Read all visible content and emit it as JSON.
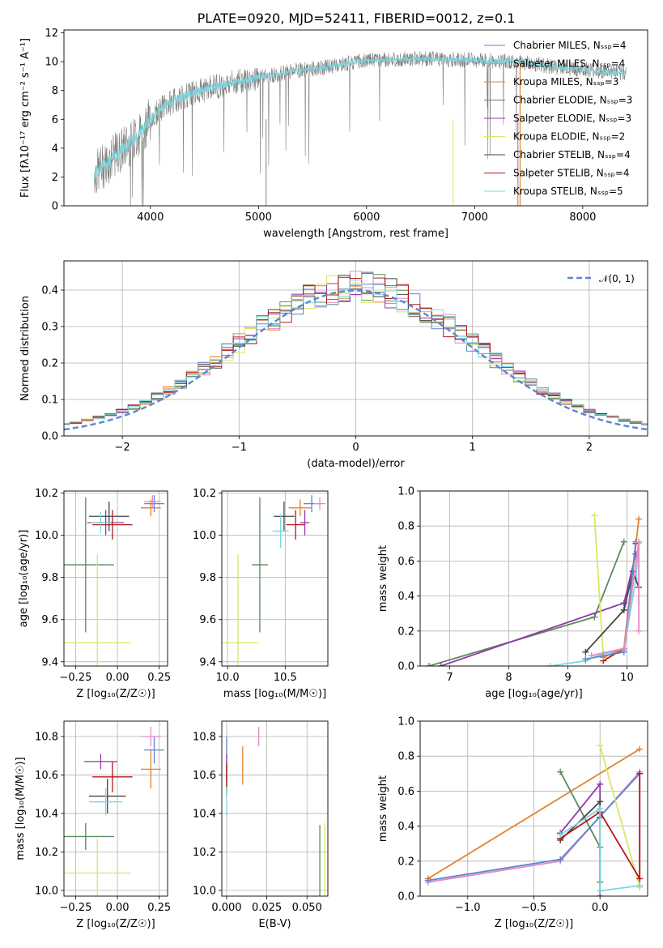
{
  "title": "PLATE=0920, MJD=52411, FIBERID=0012, z=0.1",
  "legend_models": [
    {
      "label": "Chabrier MILES, Nₛₛₚ=4",
      "color": "#5b86d4"
    },
    {
      "label": "Salpeter MILES, Nₛₛₚ=4",
      "color": "#e58ac3"
    },
    {
      "label": "Kroupa MILES, Nₛₛₚ=3",
      "color": "#e0842f"
    },
    {
      "label": "Chabrier ELODIE, Nₛₛₚ=3",
      "color": "#5a8a5f"
    },
    {
      "label": "Salpeter ELODIE, Nₛₛₚ=3",
      "color": "#8e3aa8"
    },
    {
      "label": "Kroupa ELODIE, Nₛₛₚ=2",
      "color": "#d8e862"
    },
    {
      "label": "Chabrier STELIB, Nₛₛₚ=4",
      "color": "#444444"
    },
    {
      "label": "Salpeter STELIB, Nₛₛₚ=4",
      "color": "#b01a1a"
    },
    {
      "label": "Kroupa STELIB, Nₛₛₚ=5",
      "color": "#79d6e0"
    }
  ],
  "chart_data": [
    {
      "id": "spectrum",
      "type": "line",
      "xlabel": "wavelength [Angstrom, rest frame]",
      "ylabel": "Flux [fλ10⁻¹⁷ erg cm⁻² s⁻¹ A⁻¹]",
      "xlim": [
        3200,
        8600
      ],
      "ylim": [
        0,
        12.2
      ],
      "xticks": [
        4000,
        5000,
        6000,
        7000,
        8000
      ],
      "yticks": [
        0,
        2,
        4,
        6,
        8,
        10,
        12
      ],
      "observed_color": "#808080",
      "model_color": "#79d6e0",
      "continuum": [
        [
          3480,
          2.2
        ],
        [
          3600,
          3.0
        ],
        [
          3750,
          4.0
        ],
        [
          3900,
          5.0
        ],
        [
          4000,
          6.0
        ],
        [
          4100,
          6.8
        ],
        [
          4300,
          7.6
        ],
        [
          4600,
          8.3
        ],
        [
          5000,
          8.9
        ],
        [
          5300,
          9.3
        ],
        [
          5600,
          9.6
        ],
        [
          6000,
          10.1
        ],
        [
          6500,
          10.2
        ],
        [
          7000,
          10.1
        ],
        [
          7400,
          10.0
        ],
        [
          7800,
          9.6
        ],
        [
          8200,
          9.3
        ],
        [
          8400,
          9.2
        ]
      ]
    },
    {
      "id": "residuals",
      "type": "histogram",
      "xlabel": "(data-model)/error",
      "ylabel": "Normed distribution",
      "xlim": [
        -2.5,
        2.5
      ],
      "ylim": [
        0,
        0.48
      ],
      "xticks": [
        -2,
        -1,
        0,
        1,
        2
      ],
      "yticks": [
        0.0,
        0.1,
        0.2,
        0.3,
        0.4
      ],
      "legend": "𝒩(0, 1)",
      "series_color": "#5b86d4"
    },
    {
      "id": "age_vs_Z",
      "type": "errorbar",
      "xlabel": "Z [log₁₀(Z/Z☉)]",
      "ylabel": "age  [log₁₀(age/yr)]",
      "xlim": [
        -0.32,
        0.3
      ],
      "ylim": [
        9.38,
        10.21
      ],
      "xticks": [
        -0.25,
        0.0,
        0.25
      ],
      "yticks": [
        9.4,
        9.6,
        9.8,
        10.0,
        10.2
      ],
      "points": [
        {
          "x": 0.22,
          "y": 10.15,
          "xerr": 0.06,
          "yerr": 0.04,
          "color": "#5b86d4"
        },
        {
          "x": 0.21,
          "y": 10.16,
          "xerr": 0.05,
          "yerr": 0.03,
          "color": "#e58ac3"
        },
        {
          "x": 0.2,
          "y": 10.13,
          "xerr": 0.06,
          "yerr": 0.04,
          "color": "#e0842f"
        },
        {
          "x": -0.19,
          "y": 9.86,
          "xerr": 0.17,
          "yerr": 0.32,
          "color": "#5a8a5f"
        },
        {
          "x": -0.07,
          "y": 10.06,
          "xerr": 0.11,
          "yerr": 0.06,
          "color": "#8e3aa8"
        },
        {
          "x": -0.12,
          "y": 9.49,
          "xerr": 0.2,
          "yerr": 0.42,
          "color": "#d8e862"
        },
        {
          "x": -0.05,
          "y": 10.09,
          "xerr": 0.12,
          "yerr": 0.07,
          "color": "#444444"
        },
        {
          "x": -0.03,
          "y": 10.05,
          "xerr": 0.12,
          "yerr": 0.07,
          "color": "#b01a1a"
        },
        {
          "x": -0.1,
          "y": 10.06,
          "xerr": 0.06,
          "yerr": 0.05,
          "color": "#79d6e0"
        }
      ]
    },
    {
      "id": "age_vs_mass",
      "type": "errorbar",
      "xlabel": "mass [log₁₀(M/M☉)]",
      "ylabel": "",
      "xlim": [
        9.95,
        10.87
      ],
      "ylim": [
        9.38,
        10.21
      ],
      "xticks": [
        10.0,
        10.5
      ],
      "yticks": [
        9.4,
        9.6,
        9.8,
        10.0,
        10.2
      ],
      "points": [
        {
          "x": 10.73,
          "y": 10.15,
          "xerr": 0.07,
          "yerr": 0.04,
          "color": "#5b86d4"
        },
        {
          "x": 10.8,
          "y": 10.15,
          "xerr": 0.05,
          "yerr": 0.03,
          "color": "#e58ac3"
        },
        {
          "x": 10.63,
          "y": 10.13,
          "xerr": 0.1,
          "yerr": 0.04,
          "color": "#e0842f"
        },
        {
          "x": 10.28,
          "y": 9.86,
          "xerr": 0.07,
          "yerr": 0.32,
          "color": "#5a8a5f"
        },
        {
          "x": 10.67,
          "y": 10.06,
          "xerr": 0.04,
          "yerr": 0.06,
          "color": "#8e3aa8"
        },
        {
          "x": 10.09,
          "y": 9.49,
          "xerr": 0.18,
          "yerr": 0.42,
          "color": "#d8e862"
        },
        {
          "x": 10.49,
          "y": 10.09,
          "xerr": 0.09,
          "yerr": 0.07,
          "color": "#444444"
        },
        {
          "x": 10.59,
          "y": 10.05,
          "xerr": 0.08,
          "yerr": 0.07,
          "color": "#b01a1a"
        },
        {
          "x": 10.46,
          "y": 10.02,
          "xerr": 0.07,
          "yerr": 0.08,
          "color": "#79d6e0"
        }
      ]
    },
    {
      "id": "weight_vs_age",
      "type": "line",
      "xlabel": "age  [log₁₀(age/yr)]",
      "ylabel": "mass weight",
      "xlim": [
        6.5,
        10.35
      ],
      "ylim": [
        0,
        1.0
      ],
      "xticks": [
        7,
        8,
        9,
        10
      ],
      "yticks": [
        0.0,
        0.2,
        0.4,
        0.6,
        0.8,
        1.0
      ],
      "series": [
        {
          "color": "#5a8a5f",
          "x": [
            6.65,
            9.45,
            9.95
          ],
          "y": [
            0.0,
            0.28,
            0.71
          ]
        },
        {
          "color": "#8e3aa8",
          "x": [
            6.85,
            9.95,
            10.15
          ],
          "y": [
            0.0,
            0.36,
            0.64
          ]
        },
        {
          "color": "#d8e862",
          "x": [
            9.45,
            9.6
          ],
          "y": [
            0.86,
            0.05
          ]
        },
        {
          "color": "#79d6e0",
          "x": [
            8.7,
            9.3,
            9.6,
            9.95,
            10.15,
            10.2
          ],
          "y": [
            0.0,
            0.03,
            0.07,
            0.09,
            0.5,
            0.7
          ]
        },
        {
          "color": "#444444",
          "x": [
            9.3,
            9.95,
            10.1,
            10.2
          ],
          "y": [
            0.08,
            0.32,
            0.54,
            0.45
          ]
        },
        {
          "color": "#b01a1a",
          "x": [
            9.6,
            9.95,
            10.15
          ],
          "y": [
            0.03,
            0.1,
            0.7
          ]
        },
        {
          "color": "#e0842f",
          "x": [
            9.6,
            9.95,
            10.2
          ],
          "y": [
            0.05,
            0.1,
            0.84
          ]
        },
        {
          "color": "#5b86d4",
          "x": [
            9.3,
            9.95,
            10.15
          ],
          "y": [
            0.04,
            0.08,
            0.71
          ]
        },
        {
          "color": "#e58ac3",
          "x": [
            9.4,
            9.95,
            10.2,
            10.2
          ],
          "y": [
            0.06,
            0.1,
            0.71,
            0.2
          ]
        }
      ]
    },
    {
      "id": "mass_vs_Z",
      "type": "errorbar",
      "xlabel": "Z [log₁₀(Z/Z☉)]",
      "ylabel": "mass [log₁₀(M/M☉)]",
      "xlim": [
        -0.32,
        0.3
      ],
      "ylim": [
        9.97,
        10.88
      ],
      "xticks": [
        -0.25,
        0.0,
        0.25
      ],
      "yticks": [
        10.0,
        10.2,
        10.4,
        10.6,
        10.8
      ],
      "points": [
        {
          "x": 0.22,
          "y": 10.73,
          "xerr": 0.06,
          "yerr": 0.07,
          "color": "#5b86d4"
        },
        {
          "x": 0.2,
          "y": 10.8,
          "xerr": 0.06,
          "yerr": 0.05,
          "color": "#e58ac3"
        },
        {
          "x": 0.2,
          "y": 10.63,
          "xerr": 0.06,
          "yerr": 0.1,
          "color": "#e0842f"
        },
        {
          "x": -0.19,
          "y": 10.28,
          "xerr": 0.17,
          "yerr": 0.07,
          "color": "#5a8a5f"
        },
        {
          "x": -0.1,
          "y": 10.67,
          "xerr": 0.1,
          "yerr": 0.04,
          "color": "#8e3aa8"
        },
        {
          "x": -0.12,
          "y": 10.09,
          "xerr": 0.2,
          "yerr": 0.18,
          "color": "#d8e862"
        },
        {
          "x": -0.06,
          "y": 10.49,
          "xerr": 0.11,
          "yerr": 0.09,
          "color": "#444444"
        },
        {
          "x": -0.03,
          "y": 10.59,
          "xerr": 0.12,
          "yerr": 0.08,
          "color": "#b01a1a"
        },
        {
          "x": -0.07,
          "y": 10.46,
          "xerr": 0.1,
          "yerr": 0.07,
          "color": "#79d6e0"
        }
      ]
    },
    {
      "id": "mass_vs_ebv",
      "type": "errorbar",
      "xlabel": "E(B-V)",
      "ylabel": "",
      "xlim": [
        -0.003,
        0.063
      ],
      "ylim": [
        9.97,
        10.88
      ],
      "xticks": [
        0.0,
        0.025,
        0.05
      ],
      "yticks": [
        10.0,
        10.2,
        10.4,
        10.6,
        10.8
      ],
      "points": [
        {
          "x": 0.0,
          "y": 10.73,
          "xerr": 0,
          "yerr": 0.07,
          "color": "#5b86d4"
        },
        {
          "x": 0.02,
          "y": 10.8,
          "xerr": 0,
          "yerr": 0.05,
          "color": "#e58ac3"
        },
        {
          "x": 0.01,
          "y": 10.65,
          "xerr": 0,
          "yerr": 0.1,
          "color": "#e0842f"
        },
        {
          "x": 0.058,
          "y": 10.14,
          "xerr": 0,
          "yerr": 0.2,
          "color": "#5a8a5f"
        },
        {
          "x": 0.0,
          "y": 10.64,
          "xerr": 0,
          "yerr": 0.07,
          "color": "#8e3aa8"
        },
        {
          "x": 0.061,
          "y": 10.1,
          "xerr": 0,
          "yerr": 0.25,
          "color": "#d8e862"
        },
        {
          "x": 0.0,
          "y": 10.58,
          "xerr": 0,
          "yerr": 0.08,
          "color": "#444444"
        },
        {
          "x": 0.0,
          "y": 10.59,
          "xerr": 0,
          "yerr": 0.07,
          "color": "#b01a1a"
        },
        {
          "x": 0.0,
          "y": 10.46,
          "xerr": 0,
          "yerr": 0.08,
          "color": "#79d6e0"
        }
      ]
    },
    {
      "id": "weight_vs_Z",
      "type": "line",
      "xlabel": "Z [log₁₀(Z/Z☉)]",
      "ylabel": "mass weight",
      "xlim": [
        -1.36,
        0.36
      ],
      "ylim": [
        0,
        1.0
      ],
      "xticks": [
        -1.0,
        -0.5,
        0.0
      ],
      "yticks": [
        0.0,
        0.2,
        0.4,
        0.6,
        0.8,
        1.0
      ],
      "series": [
        {
          "color": "#e0842f",
          "x": [
            -1.3,
            0.3
          ],
          "y": [
            0.1,
            0.84
          ]
        },
        {
          "color": "#e58ac3",
          "x": [
            -1.3,
            -0.3,
            0.3,
            0.3
          ],
          "y": [
            0.08,
            0.2,
            0.71,
            0.06
          ]
        },
        {
          "color": "#5b86d4",
          "x": [
            -1.3,
            -0.3,
            0.3
          ],
          "y": [
            0.09,
            0.21,
            0.7
          ]
        },
        {
          "color": "#5a8a5f",
          "x": [
            -0.3,
            0.0,
            0.0
          ],
          "y": [
            0.71,
            0.28,
            0.08
          ]
        },
        {
          "color": "#8e3aa8",
          "x": [
            -0.3,
            0.0,
            0.0
          ],
          "y": [
            0.36,
            0.64,
            0.0
          ]
        },
        {
          "color": "#d8e862",
          "x": [
            0.0,
            0.3
          ],
          "y": [
            0.86,
            0.05
          ]
        },
        {
          "color": "#444444",
          "x": [
            -0.3,
            0.0,
            0.0
          ],
          "y": [
            0.32,
            0.54,
            0.45
          ]
        },
        {
          "color": "#b01a1a",
          "x": [
            -0.3,
            0.0,
            0.3,
            0.3
          ],
          "y": [
            0.33,
            0.48,
            0.1,
            0.7
          ]
        },
        {
          "color": "#79d6e0",
          "x": [
            -0.3,
            0.0,
            0.0,
            0.3
          ],
          "y": [
            0.35,
            0.5,
            0.03,
            0.06
          ]
        }
      ]
    }
  ]
}
